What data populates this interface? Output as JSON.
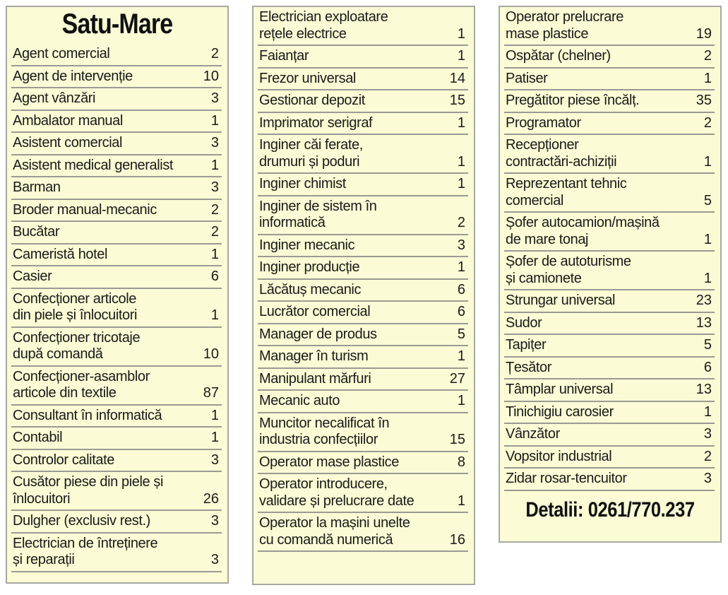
{
  "title": "Satu-Mare",
  "footer": "Detalii: 0261/770.237",
  "columns": [
    [
      {
        "name": "Agent comercial",
        "count": "2"
      },
      {
        "name": "Agent de intervenție",
        "count": "10"
      },
      {
        "name": "Agent vânzări",
        "count": "3"
      },
      {
        "name": "Ambalator manual",
        "count": "1"
      },
      {
        "name": "Asistent comercial",
        "count": "3"
      },
      {
        "name": "Asistent medical generalist",
        "count": "1"
      },
      {
        "name": "Barman",
        "count": "3"
      },
      {
        "name": "Broder manual-mecanic",
        "count": "2"
      },
      {
        "name": "Bucătar",
        "count": "2"
      },
      {
        "name": "Cameristă hotel",
        "count": "1"
      },
      {
        "name": "Casier",
        "count": "6"
      },
      {
        "name": "Confecționer articole\ndin piele și înlocuitori",
        "count": "1"
      },
      {
        "name": "Confecționer tricotaje\ndupă comandă",
        "count": "10"
      },
      {
        "name": "Confecționer-asamblor\narticole din textile",
        "count": "87"
      },
      {
        "name": "Consultant în informatică",
        "count": "1"
      },
      {
        "name": "Contabil",
        "count": "1"
      },
      {
        "name": "Controlor calitate",
        "count": "3"
      },
      {
        "name": "Cusător piese din piele și\nînlocuitori",
        "count": "26"
      },
      {
        "name": "Dulgher (exclusiv rest.)",
        "count": "3"
      },
      {
        "name": "Electrician de întreținere\nși reparații",
        "count": "3"
      }
    ],
    [
      {
        "name": "Electrician exploatare\nrețele electrice",
        "count": "1"
      },
      {
        "name": "Faianțar",
        "count": "1"
      },
      {
        "name": "Frezor universal",
        "count": "14"
      },
      {
        "name": "Gestionar depozit",
        "count": "15"
      },
      {
        "name": "Imprimator serigraf",
        "count": "1"
      },
      {
        "name": "Inginer căi ferate,\ndrumuri și poduri",
        "count": "1"
      },
      {
        "name": "Inginer chimist",
        "count": "1"
      },
      {
        "name": "Inginer de sistem în\ninformatică",
        "count": "2"
      },
      {
        "name": "Inginer mecanic",
        "count": "3"
      },
      {
        "name": "Inginer producție",
        "count": "1"
      },
      {
        "name": "Lăcătuș mecanic",
        "count": "6"
      },
      {
        "name": "Lucrător comercial",
        "count": "6"
      },
      {
        "name": "Manager de produs",
        "count": "5"
      },
      {
        "name": "Manager în turism",
        "count": "1"
      },
      {
        "name": "Manipulant mărfuri",
        "count": "27"
      },
      {
        "name": "Mecanic auto",
        "count": "1"
      },
      {
        "name": "Muncitor necalificat în\nindustria confecțiilor",
        "count": "15"
      },
      {
        "name": "Operator mase plastice",
        "count": "8"
      },
      {
        "name": "Operator introducere,\nvalidare și prelucrare date",
        "count": "1"
      },
      {
        "name": "Operator la mașini unelte\ncu comandă numerică",
        "count": "16"
      }
    ],
    [
      {
        "name": "Operator prelucrare\nmase plastice",
        "count": "19"
      },
      {
        "name": "Ospătar (chelner)",
        "count": "2"
      },
      {
        "name": "Patiser",
        "count": "1"
      },
      {
        "name": "Pregătitor piese încălț.",
        "count": "35"
      },
      {
        "name": "Programator",
        "count": "2"
      },
      {
        "name": "Recepționer\ncontractări-achiziții",
        "count": "1"
      },
      {
        "name": "Reprezentant tehnic\ncomercial",
        "count": "5"
      },
      {
        "name": "Șofer autocamion/mașină\nde mare tonaj",
        "count": "1"
      },
      {
        "name": "Șofer de autoturisme\nși camionete",
        "count": "1"
      },
      {
        "name": "Strungar universal",
        "count": "23"
      },
      {
        "name": "Sudor",
        "count": "13"
      },
      {
        "name": "Tapițer",
        "count": "5"
      },
      {
        "name": "Țesător",
        "count": "6"
      },
      {
        "name": "Tâmplar universal",
        "count": "13"
      },
      {
        "name": "Tinichigiu carosier",
        "count": "1"
      },
      {
        "name": "Vânzător",
        "count": "3"
      },
      {
        "name": "Vopsitor industrial",
        "count": "2"
      },
      {
        "name": "Zidar rosar-tencuitor",
        "count": "3"
      }
    ]
  ]
}
